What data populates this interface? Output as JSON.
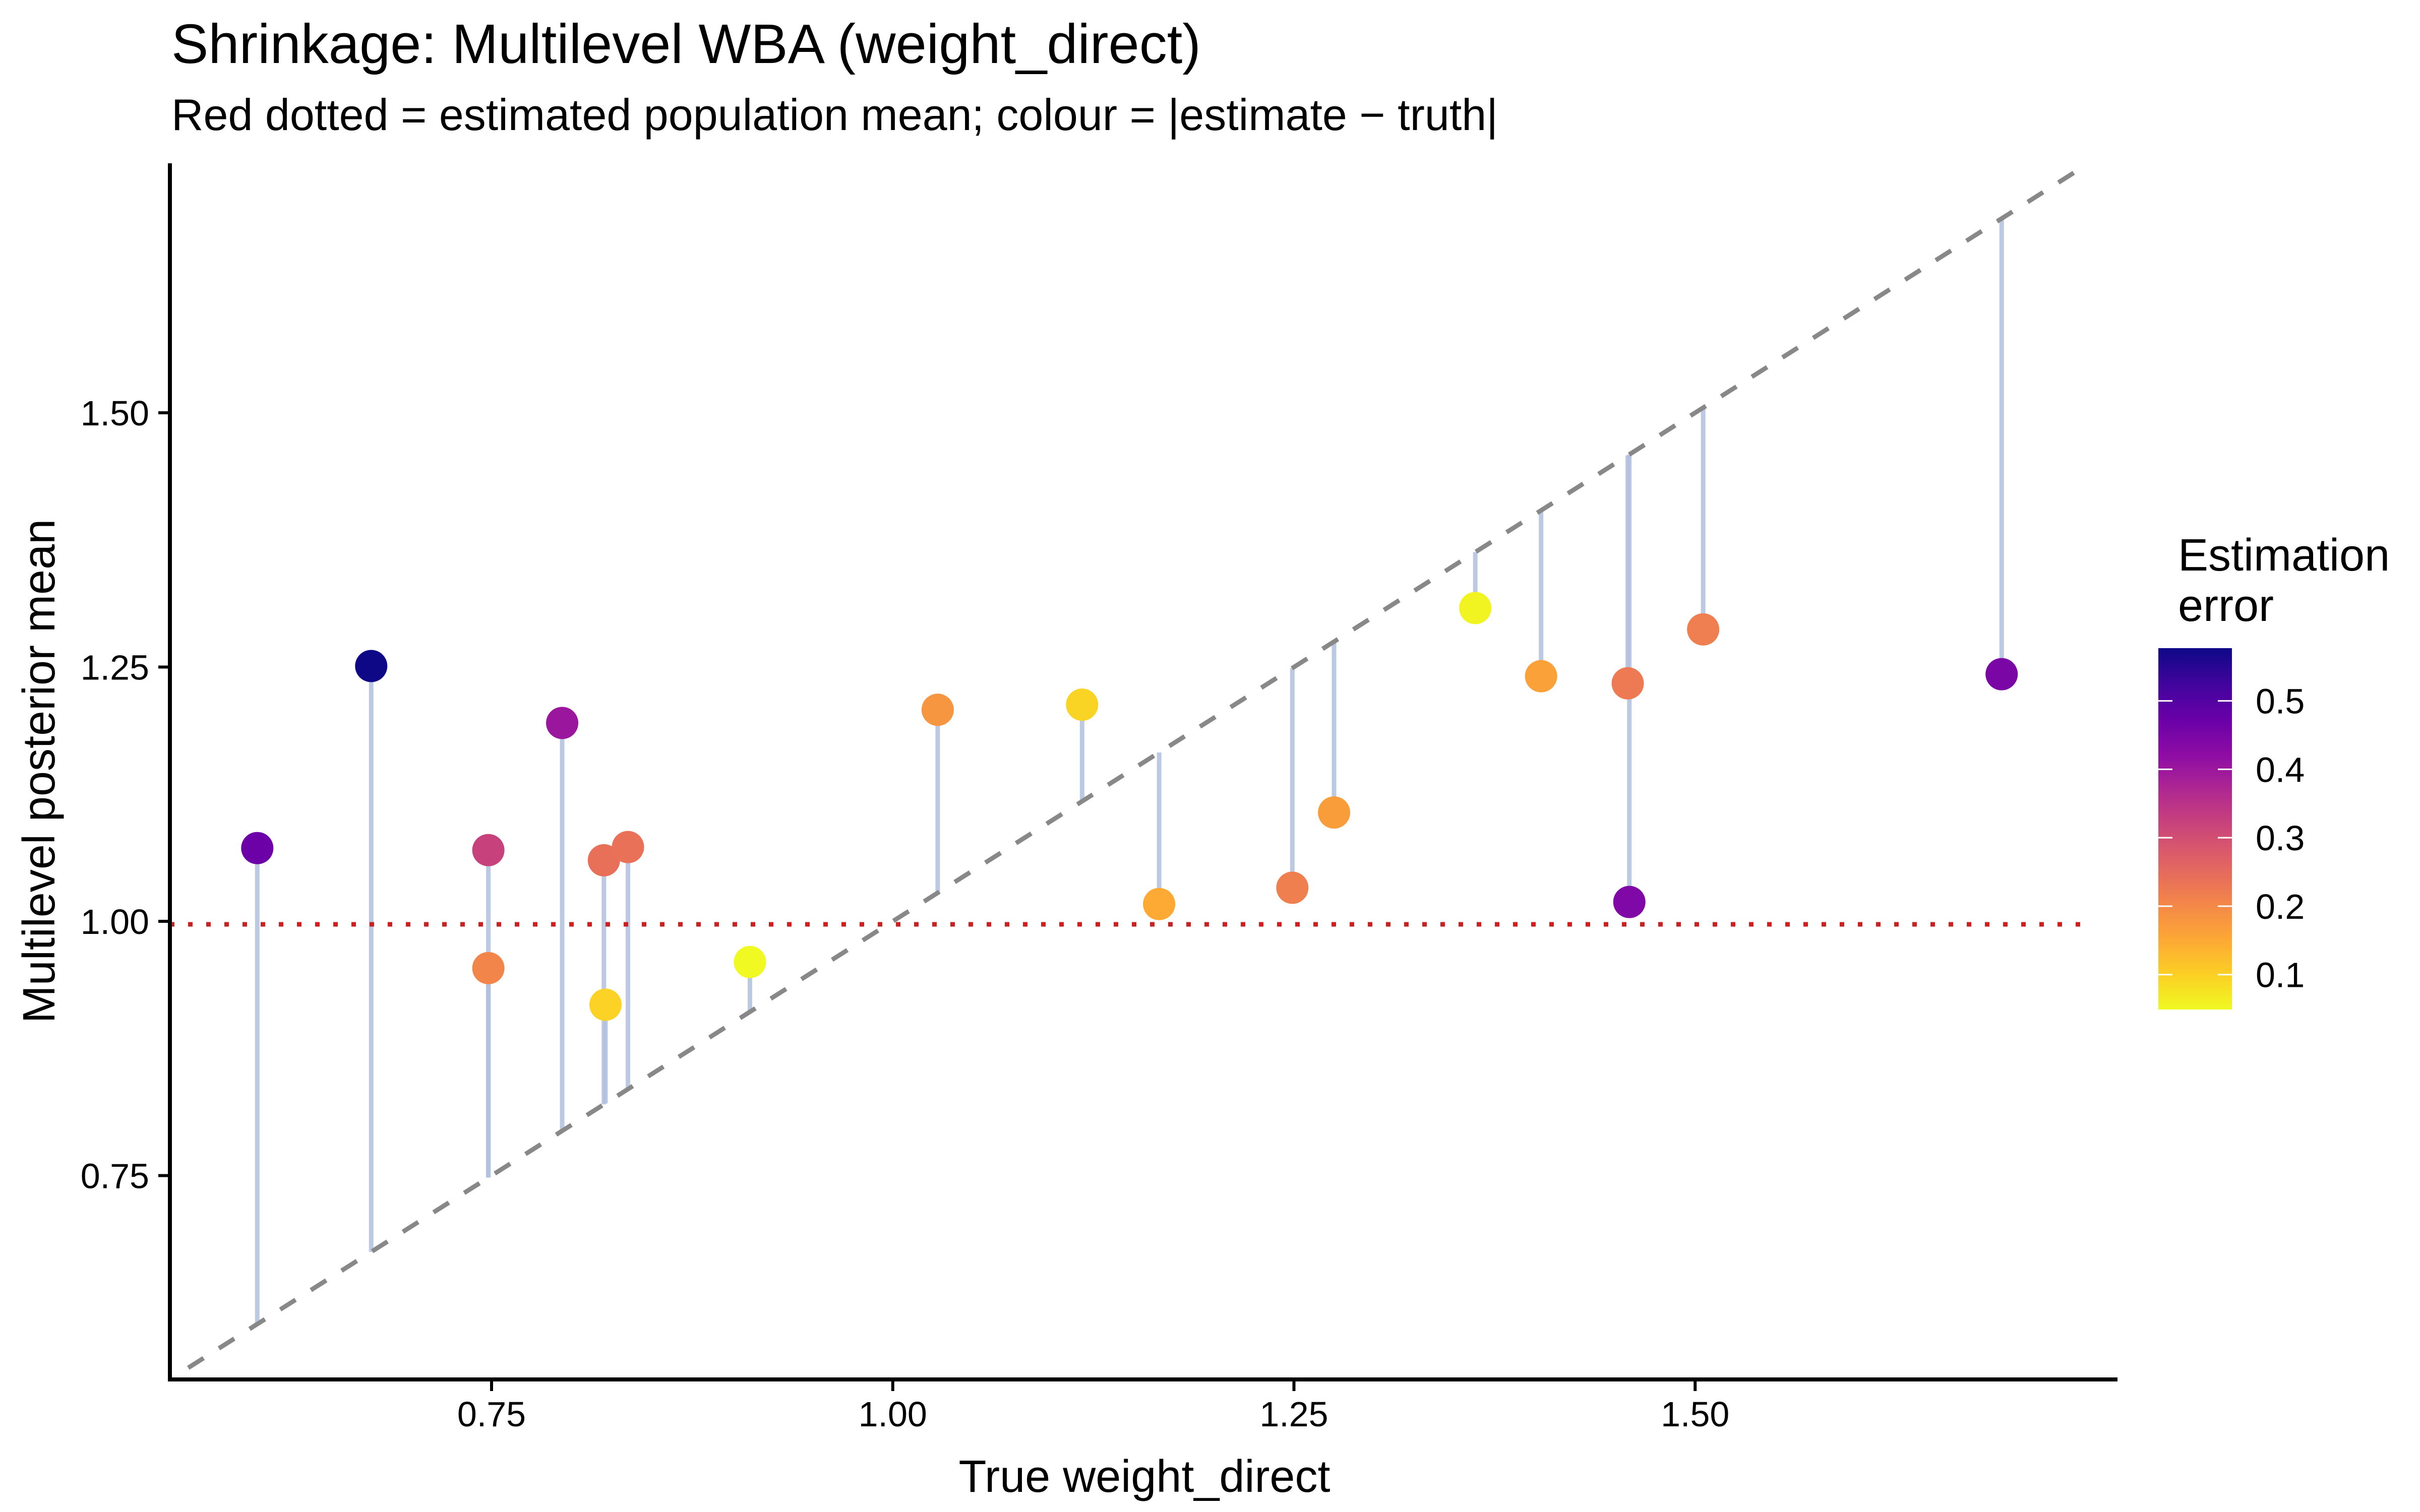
{
  "chart_data": {
    "type": "scatter",
    "title": "Shrinkage: Multilevel WBA (weight_direct)",
    "subtitle": "Red dotted = estimated population mean; colour = |estimate − truth|",
    "xlabel": "True weight_direct",
    "ylabel": "Multilevel posterior mean",
    "xlim": [
      0.55,
      1.763
    ],
    "ylim": [
      0.55,
      1.745
    ],
    "x_ticks": [
      0.75,
      1.0,
      1.25,
      1.5
    ],
    "x_tick_labels": [
      "0.75",
      "1.00",
      "1.25",
      "1.50"
    ],
    "y_ticks": [
      0.75,
      1.0,
      1.25,
      1.5
    ],
    "y_tick_labels": [
      "0.75",
      "1.00",
      "1.25",
      "1.50"
    ],
    "grid": false,
    "reference_lines": {
      "identity": {
        "description": "y = x",
        "style": "dashed",
        "color": "#888888",
        "from": 0.561,
        "to": 1.742
      },
      "population_mean": {
        "value": 0.997,
        "style": "dotted",
        "color": "#cc1f1f"
      }
    },
    "segment_color": "#b0c0dd",
    "points": [
      {
        "truth": 0.604,
        "estimate": 1.072,
        "error": 0.468
      },
      {
        "truth": 0.675,
        "estimate": 1.251,
        "error": 0.576
      },
      {
        "truth": 0.748,
        "estimate": 1.07,
        "error": 0.322
      },
      {
        "truth": 0.748,
        "estimate": 0.954,
        "error": 0.206
      },
      {
        "truth": 0.794,
        "estimate": 1.195,
        "error": 0.401
      },
      {
        "truth": 0.82,
        "estimate": 1.06,
        "error": 0.24
      },
      {
        "truth": 0.821,
        "estimate": 0.918,
        "error": 0.097
      },
      {
        "truth": 0.835,
        "estimate": 1.073,
        "error": 0.238
      },
      {
        "truth": 0.911,
        "estimate": 0.96,
        "error": 0.049
      },
      {
        "truth": 1.028,
        "estimate": 1.208,
        "error": 0.18
      },
      {
        "truth": 1.118,
        "estimate": 1.213,
        "error": 0.095
      },
      {
        "truth": 1.166,
        "estimate": 1.017,
        "error": 0.149
      },
      {
        "truth": 1.249,
        "estimate": 1.033,
        "error": 0.216
      },
      {
        "truth": 1.275,
        "estimate": 1.107,
        "error": 0.168
      },
      {
        "truth": 1.363,
        "estimate": 1.308,
        "error": 0.055
      },
      {
        "truth": 1.404,
        "estimate": 1.241,
        "error": 0.163
      },
      {
        "truth": 1.458,
        "estimate": 1.234,
        "error": 0.224
      },
      {
        "truth": 1.459,
        "estimate": 1.019,
        "error": 0.44
      },
      {
        "truth": 1.505,
        "estimate": 1.287,
        "error": 0.218
      },
      {
        "truth": 1.691,
        "estimate": 1.243,
        "error": 0.448
      }
    ],
    "legend": {
      "title_lines": [
        "Estimation",
        "error"
      ],
      "position": "right",
      "type": "colorbar",
      "colormap": "plasma (reversed: high = dark)",
      "range": [
        0.049,
        0.577
      ],
      "ticks": [
        0.1,
        0.2,
        0.3,
        0.4,
        0.5
      ],
      "tick_labels": [
        "0.1",
        "0.2",
        "0.3",
        "0.4",
        "0.5"
      ],
      "color_stops": [
        "#f0f921",
        "#f89540",
        "#cc4778",
        "#7e03a8",
        "#0d0887"
      ]
    }
  }
}
